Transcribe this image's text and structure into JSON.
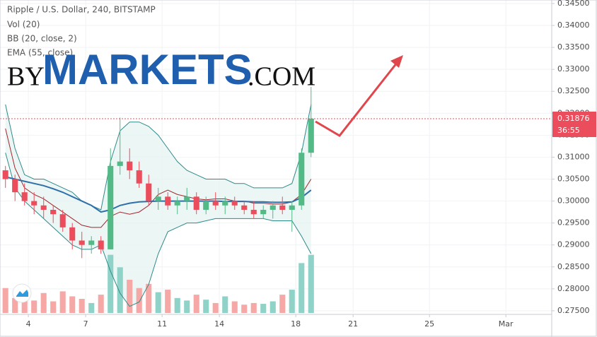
{
  "chart_data": {
    "type": "candlestick",
    "title": "Ripple / U.S. Dollar, 240, BITSTAMP",
    "indicators": [
      "Vol (20)",
      "BB (20, close, 2)",
      "EMA (55, close)"
    ],
    "brand": {
      "prefix": "BY",
      "name": "MARKETS",
      "suffix": ".COM"
    },
    "x": [
      2.8,
      3.3,
      3.8,
      4.3,
      4.8,
      5.3,
      5.8,
      6.3,
      6.8,
      7.3,
      7.8,
      8.3,
      8.8,
      9.3,
      9.8,
      10.3,
      10.8,
      11.3,
      11.8,
      12.3,
      12.8,
      13.3,
      13.8,
      14.3,
      14.8,
      15.3,
      15.8,
      16.3,
      16.8,
      17.3,
      17.8,
      18.3,
      18.8
    ],
    "open": [
      0.307,
      0.305,
      0.302,
      0.3,
      0.299,
      0.298,
      0.297,
      0.294,
      0.291,
      0.29,
      0.291,
      0.289,
      0.308,
      0.309,
      0.307,
      0.304,
      0.3,
      0.301,
      0.299,
      0.3,
      0.301,
      0.298,
      0.3,
      0.299,
      0.3,
      0.299,
      0.298,
      0.297,
      0.298,
      0.299,
      0.298,
      0.299,
      0.311
    ],
    "high": [
      0.308,
      0.306,
      0.304,
      0.302,
      0.301,
      0.299,
      0.298,
      0.295,
      0.293,
      0.292,
      0.292,
      0.312,
      0.319,
      0.312,
      0.309,
      0.306,
      0.303,
      0.302,
      0.301,
      0.303,
      0.302,
      0.301,
      0.302,
      0.301,
      0.301,
      0.3,
      0.3,
      0.299,
      0.3,
      0.301,
      0.3,
      0.312,
      0.326
    ],
    "low": [
      0.303,
      0.3,
      0.299,
      0.297,
      0.296,
      0.295,
      0.293,
      0.289,
      0.287,
      0.288,
      0.288,
      0.289,
      0.306,
      0.305,
      0.303,
      0.299,
      0.298,
      0.298,
      0.297,
      0.298,
      0.297,
      0.297,
      0.298,
      0.297,
      0.298,
      0.297,
      0.296,
      0.296,
      0.296,
      0.297,
      0.293,
      0.298,
      0.31
    ],
    "close": [
      0.305,
      0.302,
      0.3,
      0.299,
      0.298,
      0.297,
      0.294,
      0.291,
      0.29,
      0.291,
      0.289,
      0.308,
      0.309,
      0.307,
      0.304,
      0.3,
      0.301,
      0.299,
      0.3,
      0.301,
      0.298,
      0.3,
      0.299,
      0.3,
      0.299,
      0.298,
      0.297,
      0.298,
      0.299,
      0.298,
      0.299,
      0.311,
      0.31876
    ],
    "volume": [
      30,
      18,
      22,
      15,
      24,
      14,
      26,
      20,
      17,
      12,
      22,
      70,
      55,
      40,
      30,
      35,
      25,
      28,
      18,
      15,
      22,
      16,
      12,
      20,
      14,
      10,
      12,
      11,
      14,
      22,
      28,
      60,
      70
    ],
    "volume_ylim": [
      0,
      85
    ],
    "up_color": "#53b987",
    "down_color": "#eb4d5c",
    "volume_up_color": "#8fd2c8",
    "volume_down_color": "#f5a8a6",
    "bb_upper": {
      "color": "#2f8a8a",
      "values": [
        0.322,
        0.312,
        0.306,
        0.305,
        0.305,
        0.304,
        0.303,
        0.302,
        0.3,
        0.299,
        0.298,
        0.309,
        0.316,
        0.318,
        0.318,
        0.317,
        0.315,
        0.312,
        0.309,
        0.307,
        0.306,
        0.305,
        0.305,
        0.305,
        0.304,
        0.304,
        0.303,
        0.303,
        0.303,
        0.303,
        0.304,
        0.311,
        0.322
      ]
    },
    "bb_lower": {
      "color": "#2f8a8a",
      "values": [
        0.311,
        0.303,
        0.3,
        0.298,
        0.296,
        0.294,
        0.292,
        0.29,
        0.289,
        0.289,
        0.29,
        0.284,
        0.279,
        0.276,
        0.277,
        0.281,
        0.288,
        0.293,
        0.294,
        0.295,
        0.295,
        0.2955,
        0.296,
        0.296,
        0.296,
        0.296,
        0.296,
        0.296,
        0.2955,
        0.2955,
        0.2955,
        0.292,
        0.288
      ]
    },
    "bb_basis": {
      "color": "#a4262c",
      "values": [
        0.3165,
        0.3075,
        0.303,
        0.3015,
        0.3005,
        0.299,
        0.2975,
        0.296,
        0.2945,
        0.294,
        0.294,
        0.2965,
        0.2975,
        0.297,
        0.2975,
        0.299,
        0.3015,
        0.3025,
        0.3015,
        0.301,
        0.3005,
        0.3003,
        0.3005,
        0.3005,
        0.3,
        0.3,
        0.2995,
        0.2995,
        0.2993,
        0.2993,
        0.2998,
        0.3015,
        0.305
      ]
    },
    "ema": {
      "color": "#2e6fa8",
      "values": [
        0.3055,
        0.305,
        0.3045,
        0.304,
        0.3035,
        0.3028,
        0.302,
        0.301,
        0.3,
        0.299,
        0.2975,
        0.298,
        0.299,
        0.2995,
        0.2998,
        0.2999,
        0.3,
        0.3,
        0.3,
        0.3,
        0.3,
        0.3,
        0.3,
        0.2999,
        0.2999,
        0.2999,
        0.2998,
        0.2998,
        0.2997,
        0.2997,
        0.2998,
        0.3008,
        0.3025
      ]
    },
    "band_fill": "#e6f4f2",
    "last_price": 0.31876,
    "countdown": "36:55",
    "xlim": [
      2.7,
      31.4
    ],
    "xticks": [
      4,
      7,
      11,
      14,
      18,
      21,
      25,
      {
        "value": 29,
        "label": "Mar"
      }
    ],
    "ylim": [
      0.2745,
      0.3458
    ],
    "yticks": [
      {
        "value": 0.275,
        "label": "0.27500"
      },
      {
        "value": 0.28,
        "label": "0.28000"
      },
      {
        "value": 0.285,
        "label": "0.28500"
      },
      {
        "value": 0.29,
        "label": "0.29000"
      },
      {
        "value": 0.295,
        "label": "0.29500"
      },
      {
        "value": 0.3,
        "label": "0.30000"
      },
      {
        "value": 0.305,
        "label": "0.30500"
      },
      {
        "value": 0.31,
        "label": "0.31000"
      },
      {
        "value": 0.315,
        "label": "0.31500"
      },
      {
        "value": 0.32,
        "label": "0.32000"
      },
      {
        "value": 0.325,
        "label": "0.32500"
      },
      {
        "value": 0.33,
        "label": "0.33000"
      },
      {
        "value": 0.335,
        "label": "0.33500"
      },
      {
        "value": 0.34,
        "label": "0.34000"
      },
      {
        "value": 0.345,
        "label": "0.34500"
      }
    ],
    "grid": true
  }
}
